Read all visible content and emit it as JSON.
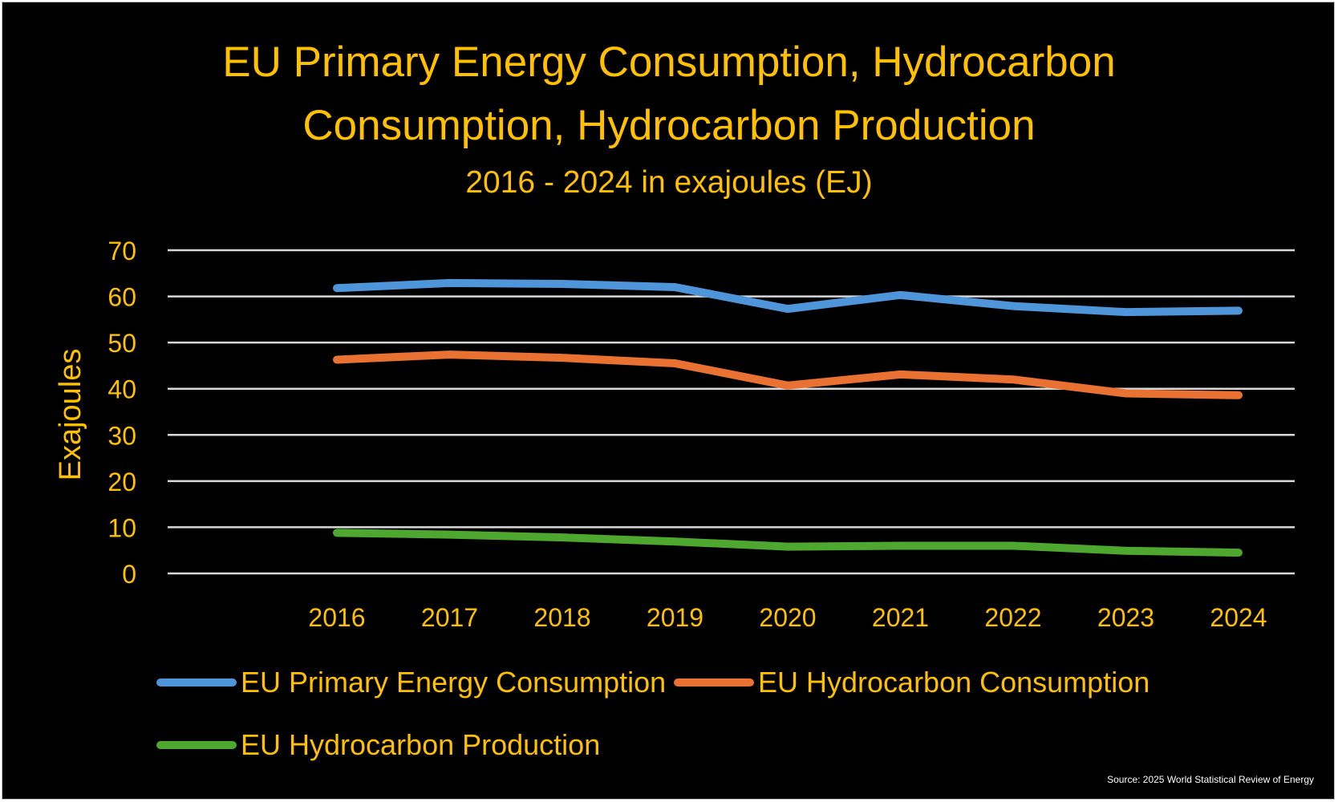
{
  "chart_data": {
    "type": "line",
    "title": "EU Primary Energy Consumption, Hydrocarbon Consumption, Hydrocarbon Production",
    "title_lines": [
      "EU Primary Energy Consumption, Hydrocarbon",
      "Consumption, Hydrocarbon Production"
    ],
    "subtitle": "2016 - 2024 in exajoules (EJ)",
    "xlabel": "",
    "ylabel": "Exajoules",
    "ylim": [
      0,
      70
    ],
    "yticks": [
      "0",
      "10",
      "20",
      "30",
      "40",
      "50",
      "60",
      "70"
    ],
    "x": [
      "2016",
      "2017",
      "2018",
      "2019",
      "2020",
      "2021",
      "2022",
      "2023",
      "2024"
    ],
    "grid": true,
    "legend_placement": "bottom",
    "series": [
      {
        "name": "EU Primary Energy Consumption",
        "color": "#4E95D9",
        "values": [
          61.8,
          62.9,
          62.7,
          62.0,
          57.3,
          60.3,
          57.9,
          56.6,
          56.9
        ]
      },
      {
        "name": "EU Hydrocarbon Consumption",
        "color": "#E97132",
        "values": [
          46.3,
          47.4,
          46.7,
          45.5,
          40.7,
          43.1,
          42.0,
          39.0,
          38.6
        ]
      },
      {
        "name": "EU Hydrocarbon Production",
        "color": "#4EA72E",
        "values": [
          8.8,
          8.4,
          7.8,
          6.9,
          5.8,
          6.0,
          6.0,
          4.9,
          4.5
        ]
      }
    ],
    "source": "Source: 2025 World Statistical Review of Energy"
  }
}
